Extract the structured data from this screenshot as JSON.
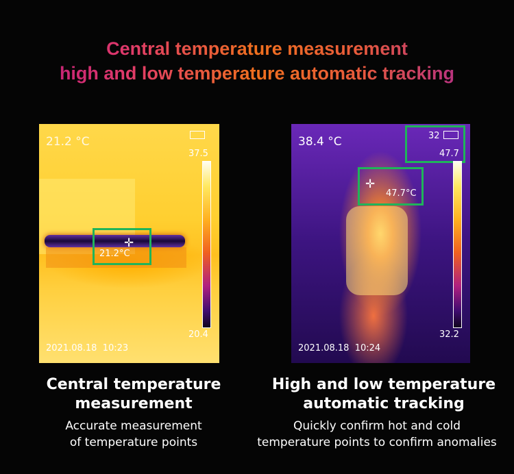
{
  "header": {
    "line1": "Central temperature measurement",
    "line2": "high and low temperature automatic tracking"
  },
  "left_image": {
    "center_temp": "21.2 °C",
    "scale_max": "37.5",
    "scale_min": "20.4",
    "point_temp": "21.2°C",
    "timestamp": "2021.08.18  10:23"
  },
  "right_image": {
    "center_temp": "38.4 °C",
    "top_value": "32",
    "scale_max": "47.7",
    "scale_min": "32.2",
    "point_temp": "47.7°C",
    "timestamp": "2021.08.18  10:24"
  },
  "captions": [
    {
      "title": [
        "Central temperature",
        "measurement"
      ],
      "text": [
        "Accurate measurement",
        "of temperature points"
      ]
    },
    {
      "title": [
        "High and low temperature",
        "automatic tracking"
      ],
      "text": [
        "Quickly confirm hot and cold",
        "temperature points to confirm anomalies"
      ]
    }
  ]
}
